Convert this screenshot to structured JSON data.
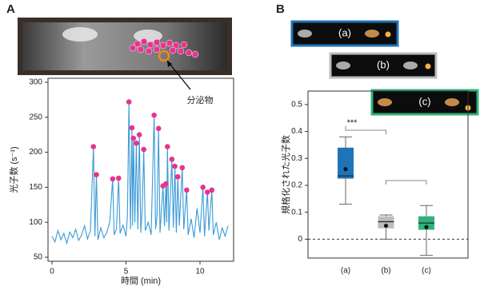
{
  "panel_labels": [
    "A",
    "B"
  ],
  "annotation": "分泌物",
  "chart_data": [
    {
      "type": "line",
      "xlabel": "時間 (min)",
      "ylabel": "光子数 (s⁻¹)",
      "xlim": [
        0,
        12
      ],
      "xticks": [
        0,
        5,
        10
      ],
      "ylim": [
        50,
        300
      ],
      "yticks": [
        50,
        100,
        150,
        200,
        250,
        300
      ],
      "series": [
        {
          "mode": "line",
          "color": "#3b9ad6",
          "x": [
            0,
            0.2,
            0.4,
            0.6,
            0.8,
            1.0,
            1.2,
            1.4,
            1.6,
            1.8,
            2.0,
            2.2,
            2.4,
            2.6,
            2.8,
            2.9,
            3.0,
            3.1,
            3.3,
            3.5,
            3.7,
            3.9,
            4.1,
            4.2,
            4.35,
            4.5,
            4.6,
            4.8,
            5.0,
            5.1,
            5.2,
            5.3,
            5.4,
            5.45,
            5.5,
            5.6,
            5.7,
            5.8,
            5.9,
            6.0,
            6.1,
            6.2,
            6.3,
            6.5,
            6.7,
            6.9,
            7.0,
            7.1,
            7.2,
            7.3,
            7.5,
            7.6,
            7.7,
            7.75,
            7.8,
            7.9,
            8.1,
            8.2,
            8.3,
            8.4,
            8.5,
            8.6,
            8.8,
            8.9,
            9.1,
            9.2,
            9.4,
            9.6,
            9.8,
            10.0,
            10.2,
            10.3,
            10.5,
            10.6,
            10.8,
            10.9,
            11.1,
            11.3,
            11.5,
            11.7,
            11.9
          ],
          "values": [
            80,
            72,
            88,
            75,
            84,
            70,
            86,
            78,
            90,
            74,
            82,
            95,
            76,
            88,
            208,
            80,
            168,
            75,
            92,
            78,
            85,
            100,
            162,
            82,
            90,
            163,
            84,
            96,
            80,
            110,
            272,
            90,
            235,
            95,
            220,
            100,
            213,
            90,
            225,
            85,
            120,
            204,
            88,
            100,
            82,
            253,
            90,
            110,
            234,
            85,
            152,
            95,
            155,
            100,
            208,
            88,
            190,
            92,
            180,
            85,
            165,
            95,
            178,
            90,
            146,
            82,
            105,
            78,
            120,
            85,
            150,
            80,
            143,
            88,
            146,
            82,
            100,
            75,
            92,
            80,
            95
          ]
        },
        {
          "mode": "markers",
          "color": "#e8338f",
          "x": [
            2.8,
            3.0,
            4.1,
            4.5,
            5.2,
            5.4,
            5.5,
            5.7,
            5.9,
            6.2,
            6.9,
            7.2,
            7.5,
            7.7,
            7.8,
            8.1,
            8.3,
            8.5,
            8.8,
            9.1,
            10.2,
            10.5,
            10.8
          ],
          "values": [
            208,
            168,
            162,
            163,
            272,
            235,
            220,
            213,
            225,
            204,
            253,
            234,
            152,
            155,
            208,
            190,
            180,
            165,
            178,
            146,
            150,
            143,
            146
          ]
        }
      ]
    },
    {
      "type": "box",
      "ylabel": "規格化された光子数",
      "categories": [
        "(a)",
        "(b)",
        "(c)"
      ],
      "condition_labels": [
        "(a)",
        "(b)",
        "(c)"
      ],
      "colors": [
        "#1f74b8",
        "#bdbdbd",
        "#2eb37a"
      ],
      "whisker_low": [
        0.13,
        0.0,
        -0.06
      ],
      "q1": [
        0.225,
        0.04,
        0.035
      ],
      "median": [
        0.235,
        0.065,
        0.06
      ],
      "q3": [
        0.34,
        0.085,
        0.085
      ],
      "whisker_high": [
        0.38,
        0.09,
        0.125
      ],
      "mean": [
        0.26,
        0.05,
        0.045
      ],
      "reference_line": 0,
      "significance": "***",
      "ylim": [
        -0.07,
        0.55
      ],
      "yticks": [
        0,
        0.1,
        0.2,
        0.3,
        0.4,
        0.5
      ]
    }
  ]
}
